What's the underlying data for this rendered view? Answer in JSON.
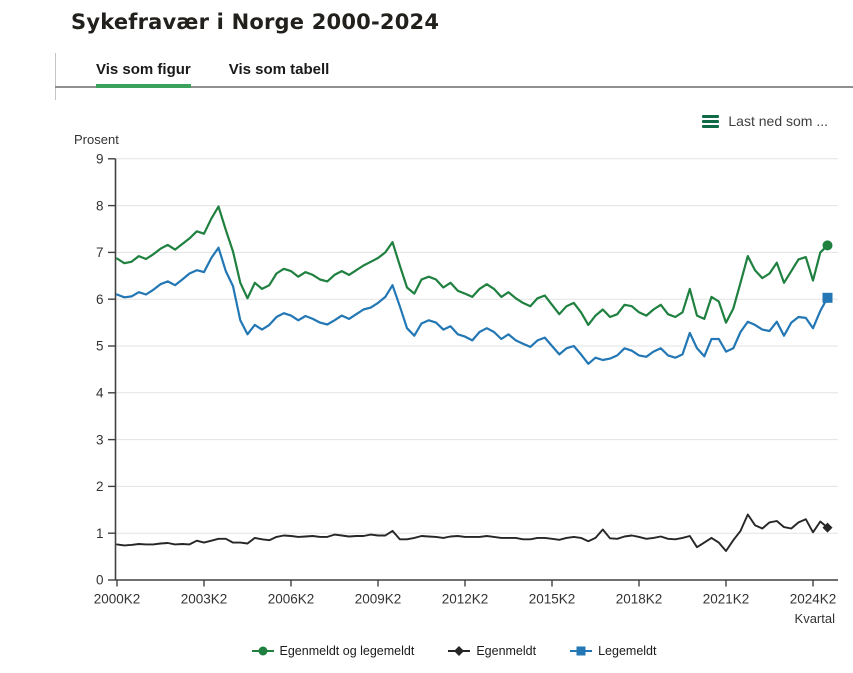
{
  "page": {
    "title": "Sykefravær i Norge 2000-2024"
  },
  "tabs": {
    "figure": {
      "label": "Vis som figur",
      "active": true
    },
    "table": {
      "label": "Vis som tabell",
      "active": false
    }
  },
  "download": {
    "label": "Last ned som ...",
    "icon": "hamburger-menu-icon"
  },
  "colors": {
    "tab_underline": "#3aa25c",
    "download_icon": "#0f6b45",
    "axis_text": "#333333",
    "grid_line": "#e3e3e3",
    "axis_line": "#404040"
  },
  "chart_data": {
    "type": "line",
    "title": "",
    "y_axis_title": "Prosent",
    "x_axis_title": "Kvartal",
    "ylim": [
      0,
      9
    ],
    "y_ticks": [
      0,
      1,
      2,
      3,
      4,
      5,
      6,
      7,
      8,
      9
    ],
    "x_start": "2000K2",
    "x_end": "2024K4",
    "frequency": "quarterly",
    "x_tick_every": 12,
    "x_tick_labels": [
      "2000K2",
      "2003K2",
      "2006K2",
      "2009K2",
      "2012K2",
      "2015K2",
      "2018K2",
      "2021K2",
      "2024K2"
    ],
    "grid": "horizontal",
    "legend_position": "bottom",
    "series": [
      {
        "name": "Egenmeldt og legemeldt",
        "color": "#1f8040",
        "marker": "circle",
        "values": [
          6.87,
          6.77,
          6.8,
          6.92,
          6.86,
          6.96,
          7.08,
          7.16,
          7.06,
          7.18,
          7.3,
          7.45,
          7.4,
          7.72,
          7.98,
          7.48,
          7.02,
          6.35,
          6.02,
          6.35,
          6.22,
          6.3,
          6.55,
          6.65,
          6.6,
          6.48,
          6.58,
          6.52,
          6.42,
          6.38,
          6.52,
          6.6,
          6.52,
          6.62,
          6.72,
          6.8,
          6.88,
          7.0,
          7.22,
          6.72,
          6.25,
          6.12,
          6.42,
          6.48,
          6.42,
          6.25,
          6.35,
          6.18,
          6.12,
          6.05,
          6.22,
          6.32,
          6.22,
          6.05,
          6.15,
          6.02,
          5.92,
          5.85,
          6.02,
          6.08,
          5.88,
          5.68,
          5.85,
          5.92,
          5.72,
          5.45,
          5.65,
          5.78,
          5.62,
          5.68,
          5.88,
          5.85,
          5.72,
          5.65,
          5.78,
          5.88,
          5.68,
          5.62,
          5.72,
          6.22,
          5.65,
          5.58,
          6.05,
          5.95,
          5.5,
          5.8,
          6.35,
          6.92,
          6.62,
          6.45,
          6.55,
          6.78,
          6.35,
          6.6,
          6.85,
          6.9,
          6.4,
          7.0,
          7.15
        ]
      },
      {
        "name": "Egenmeldt",
        "color": "#262626",
        "marker": "diamond",
        "values": [
          0.76,
          0.74,
          0.75,
          0.77,
          0.76,
          0.76,
          0.78,
          0.79,
          0.76,
          0.77,
          0.76,
          0.84,
          0.8,
          0.84,
          0.88,
          0.88,
          0.8,
          0.8,
          0.78,
          0.9,
          0.87,
          0.85,
          0.92,
          0.95,
          0.94,
          0.92,
          0.93,
          0.94,
          0.92,
          0.92,
          0.97,
          0.95,
          0.93,
          0.94,
          0.94,
          0.97,
          0.95,
          0.95,
          1.05,
          0.87,
          0.87,
          0.9,
          0.94,
          0.93,
          0.92,
          0.9,
          0.93,
          0.94,
          0.92,
          0.92,
          0.92,
          0.94,
          0.92,
          0.9,
          0.9,
          0.9,
          0.87,
          0.87,
          0.9,
          0.9,
          0.88,
          0.86,
          0.9,
          0.92,
          0.9,
          0.83,
          0.9,
          1.08,
          0.89,
          0.88,
          0.93,
          0.95,
          0.92,
          0.88,
          0.9,
          0.93,
          0.88,
          0.87,
          0.9,
          0.94,
          0.7,
          0.8,
          0.9,
          0.8,
          0.62,
          0.85,
          1.05,
          1.4,
          1.17,
          1.1,
          1.23,
          1.26,
          1.13,
          1.1,
          1.23,
          1.3,
          1.02,
          1.25,
          1.12
        ]
      },
      {
        "name": "Legemeldt",
        "color": "#2277b4",
        "marker": "square",
        "values": [
          6.1,
          6.04,
          6.06,
          6.15,
          6.1,
          6.2,
          6.32,
          6.38,
          6.3,
          6.42,
          6.55,
          6.62,
          6.58,
          6.88,
          7.1,
          6.6,
          6.28,
          5.55,
          5.25,
          5.45,
          5.35,
          5.45,
          5.62,
          5.7,
          5.65,
          5.55,
          5.64,
          5.58,
          5.5,
          5.46,
          5.55,
          5.65,
          5.58,
          5.68,
          5.78,
          5.82,
          5.92,
          6.05,
          6.3,
          5.85,
          5.38,
          5.22,
          5.48,
          5.55,
          5.5,
          5.35,
          5.42,
          5.25,
          5.2,
          5.12,
          5.3,
          5.38,
          5.3,
          5.15,
          5.25,
          5.12,
          5.05,
          4.98,
          5.12,
          5.18,
          5.0,
          4.82,
          4.95,
          5.0,
          4.82,
          4.62,
          4.75,
          4.7,
          4.73,
          4.8,
          4.95,
          4.9,
          4.8,
          4.77,
          4.88,
          4.95,
          4.8,
          4.75,
          4.82,
          5.28,
          4.95,
          4.78,
          5.15,
          5.15,
          4.88,
          4.95,
          5.3,
          5.52,
          5.45,
          5.35,
          5.32,
          5.52,
          5.22,
          5.5,
          5.62,
          5.6,
          5.38,
          5.75,
          6.03
        ]
      }
    ]
  }
}
